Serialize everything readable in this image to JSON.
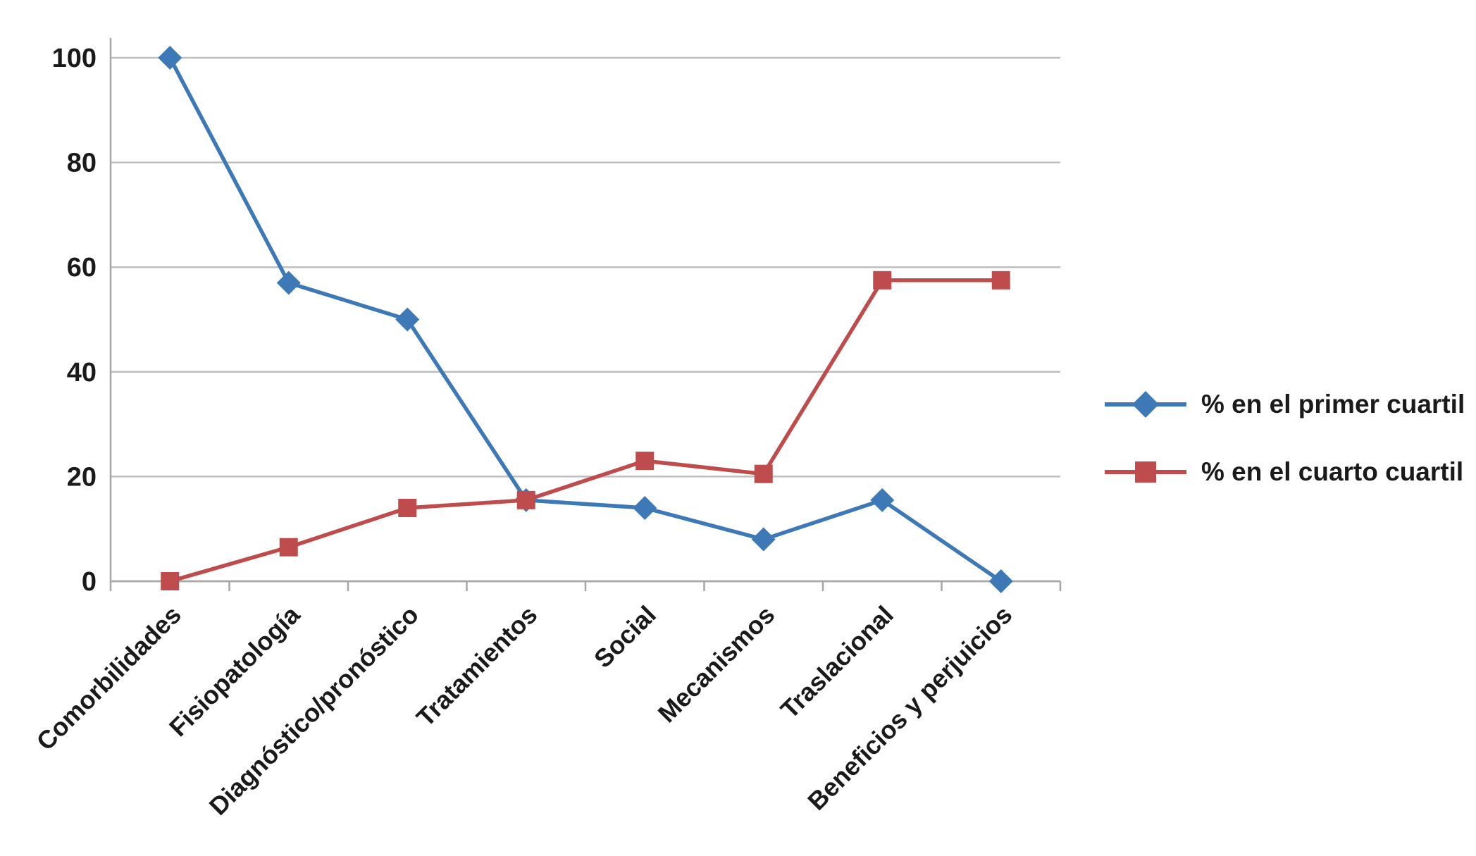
{
  "chart_data": {
    "type": "line",
    "categories": [
      "Comorbilidades",
      "Fisiopatología",
      "Diagnóstico/pronóstico",
      "Tratamientos",
      "Social",
      "Mecanismos",
      "Traslacional",
      "Beneficios y perjuicios"
    ],
    "series": [
      {
        "name": "% en el primer cuartil",
        "color": "#3D79B6",
        "marker": "diamond",
        "values": [
          100,
          57,
          50,
          15.5,
          14,
          8,
          15.5,
          0
        ]
      },
      {
        "name": "% en el cuarto cuartil",
        "color": "#BE4C4C",
        "marker": "square",
        "values": [
          0,
          6.5,
          14,
          15.5,
          23,
          20.5,
          57.5,
          57.5
        ]
      }
    ],
    "title": "",
    "xlabel": "",
    "ylabel": "",
    "ylim": [
      0,
      100
    ],
    "yticks": [
      0,
      20,
      40,
      60,
      80,
      100
    ],
    "grid": true,
    "legend_position": "right",
    "colors": {
      "gridline": "#BFBFBF",
      "axis": "#A6A6A6",
      "text": "#1A1A1A",
      "background": "#FFFFFF"
    }
  }
}
